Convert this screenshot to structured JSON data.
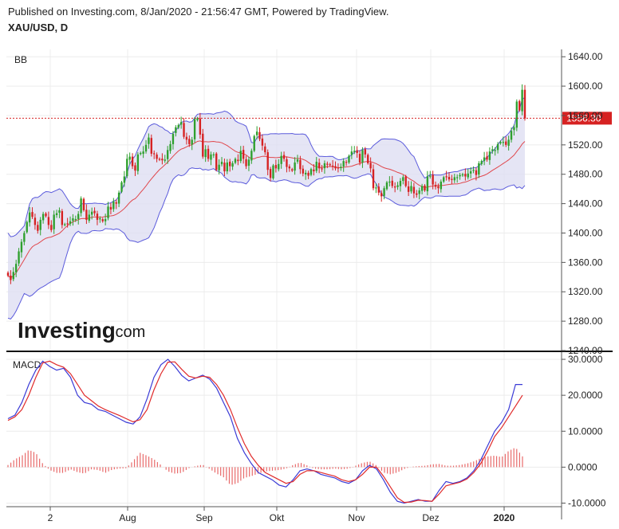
{
  "header": {
    "publisher": "Published on Investing.com, 8/Jan/2020 - 21:56:47 GMT, Powered by TradingView.",
    "symbol": "XAU/USD, D"
  },
  "logo": {
    "main": "Investing",
    "suffix": ".com"
  },
  "chart_data": [
    {
      "type": "candlestick",
      "title": "BB",
      "indicator_label": "BB",
      "ylim": [
        1240,
        1650
      ],
      "y_ticks": [
        "1640.00",
        "1600.00",
        "1560.00",
        "1520.00",
        "1480.00",
        "1440.00",
        "1400.00",
        "1360.00",
        "1320.00",
        "1280.00",
        "1240.00"
      ],
      "x_tick_labels": [
        "2",
        "Aug",
        "Sep",
        "Okt",
        "Nov",
        "Dez",
        "2020"
      ],
      "last_price": "1556.30",
      "last_price_value": 1556.3,
      "colors": {
        "up": "#2ea02e",
        "down": "#d62222",
        "band": "#5b5bdc",
        "band_fill": "#dedef3",
        "middle": "#e0474c",
        "price_line": "#d62222"
      },
      "close_series": [
        1342,
        1336,
        1347,
        1358,
        1375,
        1388,
        1400,
        1415,
        1428,
        1422,
        1411,
        1403,
        1418,
        1426,
        1423,
        1411,
        1404,
        1425,
        1427,
        1431,
        1411,
        1412,
        1413,
        1416,
        1420,
        1419,
        1426,
        1447,
        1431,
        1418,
        1425,
        1429,
        1427,
        1418,
        1420,
        1416,
        1419,
        1436,
        1432,
        1443,
        1440,
        1455,
        1469,
        1477,
        1501,
        1504,
        1491,
        1485,
        1507,
        1509,
        1511,
        1520,
        1530,
        1508,
        1508,
        1501,
        1500,
        1499,
        1500,
        1513,
        1521,
        1535,
        1544,
        1547,
        1551,
        1531,
        1527,
        1521,
        1527,
        1555,
        1556,
        1534,
        1504,
        1514,
        1501,
        1507,
        1507,
        1486,
        1493,
        1497,
        1484,
        1496,
        1491,
        1495,
        1501,
        1498,
        1512,
        1501,
        1491,
        1500,
        1512,
        1532,
        1538,
        1528,
        1519,
        1510,
        1486,
        1475,
        1492,
        1488,
        1494,
        1505,
        1501,
        1490,
        1488,
        1485,
        1496,
        1500,
        1487,
        1481,
        1482,
        1478,
        1487,
        1484,
        1497,
        1488,
        1487,
        1495,
        1493,
        1493,
        1491,
        1488,
        1489,
        1490,
        1498,
        1496,
        1505,
        1511,
        1512,
        1509,
        1496,
        1513,
        1507,
        1495,
        1488,
        1461,
        1462,
        1455,
        1450,
        1461,
        1469,
        1470,
        1464,
        1462,
        1465,
        1471,
        1476,
        1464,
        1456,
        1464,
        1454,
        1452,
        1458,
        1464,
        1458,
        1477,
        1478,
        1466,
        1463,
        1461,
        1470,
        1476,
        1477,
        1473,
        1473,
        1476,
        1476,
        1479,
        1480,
        1477,
        1481,
        1484,
        1486,
        1479,
        1495,
        1498,
        1503,
        1500,
        1511,
        1514,
        1513,
        1521,
        1524,
        1524,
        1520,
        1527,
        1539,
        1544,
        1579,
        1567,
        1595,
        1556
      ]
    },
    {
      "type": "line",
      "title": "MACD",
      "indicator_label": "MACD",
      "ylim": [
        -11,
        32
      ],
      "y_ticks": [
        "30.0000",
        "20.0000",
        "10.0000",
        "0.0000",
        "-10.0000"
      ],
      "colors": {
        "macd": "#3b3bd6",
        "signal": "#e02b2b",
        "histogram": "#e86a6a"
      },
      "series": [
        {
          "name": "MACD",
          "values": [
            13.5,
            14.5,
            18,
            23,
            27,
            29.5,
            28,
            27,
            27.5,
            25,
            20,
            18,
            17.5,
            16,
            15.5,
            14.5,
            13.5,
            12.5,
            12,
            14,
            19,
            25,
            28.5,
            30,
            28,
            25.5,
            24,
            24.8,
            25.6,
            24.5,
            22,
            18,
            14,
            8,
            4,
            1,
            -1.5,
            -2.5,
            -3.5,
            -5,
            -5.5,
            -3.5,
            -1,
            -0.5,
            -1,
            -2,
            -2.5,
            -3,
            -4,
            -4.5,
            -3.5,
            -1,
            0.5,
            -0.5,
            -3.5,
            -7,
            -9.5,
            -10,
            -9.5,
            -9,
            -9.5,
            -9.5,
            -6.5,
            -4,
            -4.5,
            -4,
            -3,
            -1,
            2,
            6,
            10,
            12.5,
            16,
            23,
            23
          ]
        },
        {
          "name": "Signal",
          "values": [
            13,
            14,
            16,
            20,
            25,
            29,
            29.5,
            28.5,
            27.8,
            26,
            23,
            20,
            18.5,
            17,
            16,
            15.2,
            14.4,
            13.5,
            12.6,
            13.2,
            16,
            21.5,
            26,
            29.2,
            29.3,
            27.2,
            25.3,
            24.8,
            25.3,
            25,
            23,
            20,
            16,
            11,
            6.5,
            3,
            0.5,
            -1.5,
            -2.5,
            -3.5,
            -4.5,
            -4,
            -2,
            -1,
            -1,
            -1.5,
            -2,
            -2.5,
            -3.5,
            -4,
            -3.5,
            -2,
            0,
            0,
            -2.5,
            -5.5,
            -8.5,
            -9.8,
            -9.7,
            -9.2,
            -9.3,
            -9.5,
            -7.5,
            -5.2,
            -4.7,
            -4.2,
            -3.3,
            -1.5,
            1,
            4.5,
            8.5,
            11,
            14,
            17,
            20
          ]
        },
        {
          "name": "Histogram",
          "values": [
            0.6,
            2.2,
            3.2,
            4.8,
            4,
            1,
            -0.8,
            -1.6,
            -1.6,
            -0.6,
            -1.4,
            -1.8,
            -0.6,
            -0.8,
            -1.6,
            -0.7,
            -0.4,
            -0.3,
            1.8,
            4,
            3.2,
            2.2,
            0.6,
            -1.2,
            -1.8,
            -1.6,
            -0.3,
            0.3,
            0.7,
            -0.5,
            -1.8,
            -2.8,
            -5,
            -4.5,
            -3,
            -2.5,
            -1.8,
            -1.2,
            -1,
            -0.8,
            -0.4,
            0.6,
            1.3,
            0.5,
            -0.4,
            -0.6,
            -0.6,
            -0.4,
            -0.6,
            -0.4,
            0.4,
            1.2,
            1.6,
            0.5,
            -1.5,
            -2,
            -1.5,
            -0.5,
            0.1,
            0.3,
            0.4,
            0.8,
            0.9,
            0.4,
            0.4,
            0.6,
            1,
            1.6,
            2.5,
            3,
            3.2,
            2.8,
            4.5,
            5.5,
            3
          ]
        }
      ]
    }
  ]
}
